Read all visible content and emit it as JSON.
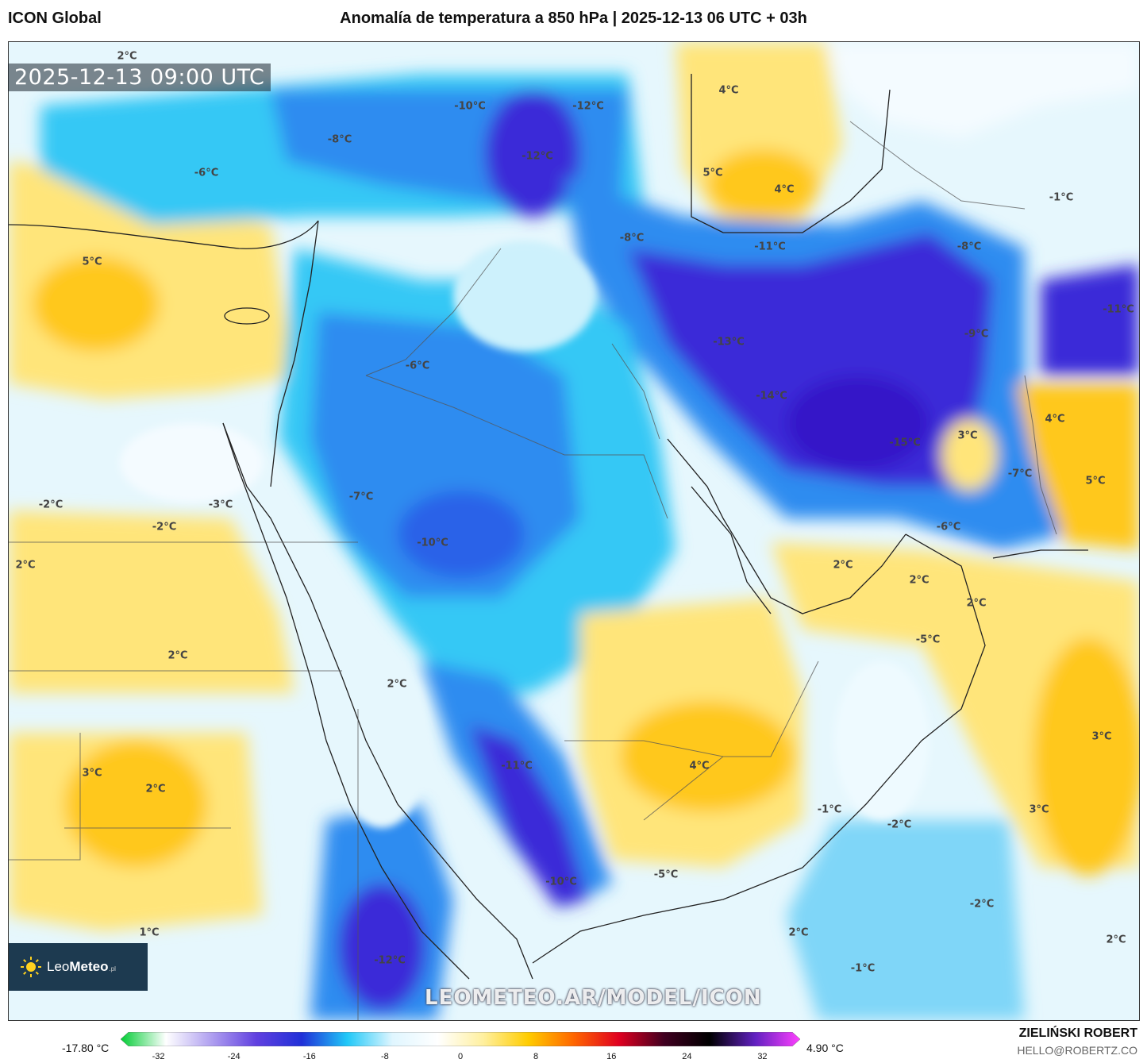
{
  "header": {
    "model": "ICON Global",
    "title": "Anomalía de temperatura a 850 hPa | 2025-12-13 06 UTC + 03h"
  },
  "map": {
    "timestamp": "2025-12-13 09:00 UTC",
    "watermark": "LEOMETEO.AR/MODEL/ICON",
    "labels": [
      {
        "text": "2°C"
      },
      {
        "text": "-10°C"
      },
      {
        "text": "-12°C"
      },
      {
        "text": "4°C"
      },
      {
        "text": "-8°C"
      },
      {
        "text": "-6°C"
      },
      {
        "text": "-12°C"
      },
      {
        "text": "5°C"
      },
      {
        "text": "4°C"
      },
      {
        "text": "-1°C"
      },
      {
        "text": "5°C"
      },
      {
        "text": "-8°C"
      },
      {
        "text": "-11°C"
      },
      {
        "text": "-8°C"
      },
      {
        "text": "-11°C"
      },
      {
        "text": "-13°C"
      },
      {
        "text": "-9°C"
      },
      {
        "text": "-6°C"
      },
      {
        "text": "-14°C"
      },
      {
        "text": "4°C"
      },
      {
        "text": "3°C"
      },
      {
        "text": "-15°C"
      },
      {
        "text": "-7°C"
      },
      {
        "text": "5°C"
      },
      {
        "text": "-7°C"
      },
      {
        "text": "-2°C"
      },
      {
        "text": "-3°C"
      },
      {
        "text": "-2°C"
      },
      {
        "text": "-10°C"
      },
      {
        "text": "-6°C"
      },
      {
        "text": "2°C"
      },
      {
        "text": "2°C"
      },
      {
        "text": "2°C"
      },
      {
        "text": "2°C"
      },
      {
        "text": "-5°C"
      },
      {
        "text": "2°C"
      },
      {
        "text": "2°C"
      },
      {
        "text": "3°C"
      },
      {
        "text": "3°C"
      },
      {
        "text": "2°C"
      },
      {
        "text": "-11°C"
      },
      {
        "text": "4°C"
      },
      {
        "text": "3°C"
      },
      {
        "text": "-1°C"
      },
      {
        "text": "-2°C"
      },
      {
        "text": "-10°C"
      },
      {
        "text": "-5°C"
      },
      {
        "text": "-2°C"
      },
      {
        "text": "1°C"
      },
      {
        "text": "2°C"
      },
      {
        "text": "2°C"
      },
      {
        "text": "-12°C"
      },
      {
        "text": "-1°C"
      }
    ]
  },
  "logo": {
    "name_light": "Leo",
    "name_bold": "Meteo",
    "suffix": ".pl"
  },
  "colorbar": {
    "min_label": "-17.80 °C",
    "max_label": "4.90 °C",
    "ticks": [
      "-32",
      "-24",
      "-16",
      "-8",
      "0",
      "8",
      "16",
      "24",
      "32"
    ],
    "range": [
      -36,
      36
    ],
    "stops": [
      "#00cc33",
      "#ffffff",
      "#b0a0f0",
      "#6040e0",
      "#2030d8",
      "#20c8f8",
      "#e0f6ff",
      "#ffffff",
      "#fff0a0",
      "#ffcc00",
      "#ff6600",
      "#e00020",
      "#400020",
      "#000000",
      "#6020c0",
      "#ff40ff"
    ]
  },
  "credit": {
    "author": "ZIELIŃSKI ROBERT",
    "email": "HELLO@ROBERTZ.CO"
  },
  "colors": {
    "strong_cold": "#3a2ad8",
    "cold": "#2d8cf0",
    "cool": "#34c8f5",
    "light_cool": "#b8ecfb",
    "neutral": "#f4fbff",
    "warm": "#ffe57a",
    "warmer": "#ffc81e"
  }
}
